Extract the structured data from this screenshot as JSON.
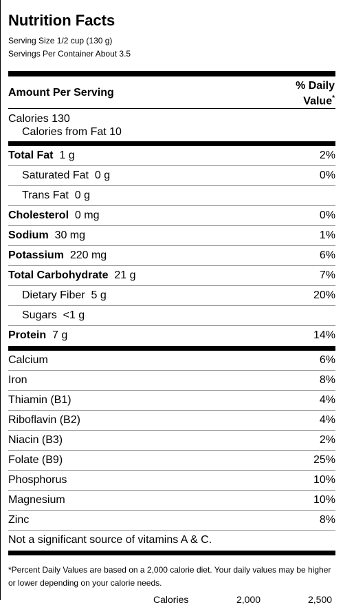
{
  "title": "Nutrition Facts",
  "serving_size": "Serving Size 1/2 cup (130 g)",
  "servings_per_container": "Servings Per Container About 3.5",
  "amount_per_serving": "Amount Per Serving",
  "daily_value_header_line1": "% Daily",
  "daily_value_header_line2": "Value",
  "daily_value_marker": "*",
  "calories": "Calories 130",
  "calories_from_fat": "Calories from Fat 10",
  "nutrients": [
    {
      "name": "Total Fat",
      "amount": "1 g",
      "dv": "2%"
    },
    {
      "name": "Saturated Fat",
      "amount": "0 g",
      "dv": "0%"
    },
    {
      "name": "Trans Fat",
      "amount": "0 g",
      "dv": ""
    },
    {
      "name": "Cholesterol",
      "amount": "0 mg",
      "dv": "0%"
    },
    {
      "name": "Sodium",
      "amount": "30 mg",
      "dv": "1%"
    },
    {
      "name": "Potassium",
      "amount": "220 mg",
      "dv": "6%"
    },
    {
      "name": "Total Carbohydrate",
      "amount": "21 g",
      "dv": "7%"
    },
    {
      "name": "Dietary Fiber",
      "amount": "5 g",
      "dv": "20%"
    },
    {
      "name": "Sugars",
      "amount": "<1 g",
      "dv": ""
    },
    {
      "name": "Protein",
      "amount": "7 g",
      "dv": "14%"
    }
  ],
  "vitamins": [
    {
      "name": "Calcium",
      "dv": "6%"
    },
    {
      "name": "Iron",
      "dv": "8%"
    },
    {
      "name": "Thiamin (B1)",
      "dv": "4%"
    },
    {
      "name": "Riboflavin (B2)",
      "dv": "4%"
    },
    {
      "name": "Niacin (B3)",
      "dv": "2%"
    },
    {
      "name": "Folate (B9)",
      "dv": "25%"
    },
    {
      "name": "Phosphorus",
      "dv": "10%"
    },
    {
      "name": "Magnesium",
      "dv": "10%"
    },
    {
      "name": "Zinc",
      "dv": "8%"
    }
  ],
  "not_significant": "Not a significant source of vitamins A & C.",
  "footnote": "*Percent Daily Values are based on a 2,000 calorie diet. Your daily values may be higher or lower depending on your calorie needs.",
  "calorie_table_header": {
    "label": "Calories",
    "col1": "2,000",
    "col2": "2,500"
  }
}
